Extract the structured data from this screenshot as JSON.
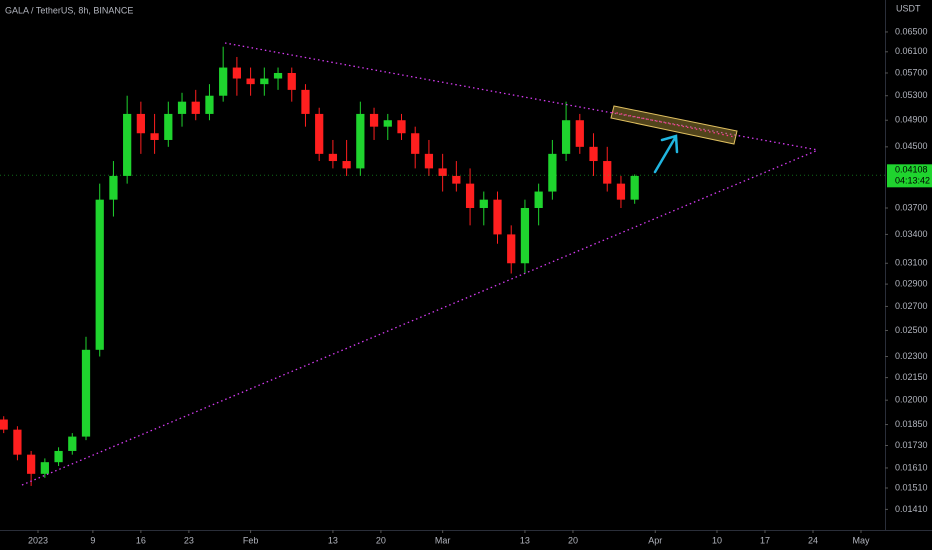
{
  "chart_data": {
    "type": "candlestick",
    "title": "GALA / TetherUS, 8h, BINANCE",
    "y_axis_unit": "USDT",
    "log_scale": true,
    "grid": false,
    "up_color": "#1fd42e",
    "down_color": "#ff1f1f",
    "xlim": [
      -5.54,
      123.5
    ],
    "ylim": [
      0.0132,
      0.072
    ],
    "xticks": [
      {
        "value": 0,
        "label": "2023"
      },
      {
        "value": 8,
        "label": "9"
      },
      {
        "value": 15,
        "label": "16"
      },
      {
        "value": 22,
        "label": "23"
      },
      {
        "value": 31,
        "label": "Feb"
      },
      {
        "value": 43,
        "label": "13"
      },
      {
        "value": 50,
        "label": "20"
      },
      {
        "value": 59,
        "label": "Mar"
      },
      {
        "value": 71,
        "label": "13"
      },
      {
        "value": 78,
        "label": "20"
      },
      {
        "value": 90,
        "label": "Apr"
      },
      {
        "value": 99,
        "label": "10"
      },
      {
        "value": 106,
        "label": "17"
      },
      {
        "value": 113,
        "label": "24"
      },
      {
        "value": 120,
        "label": "May"
      }
    ],
    "yticks": [
      {
        "value": 0.065,
        "label": "0.06500"
      },
      {
        "value": 0.061,
        "label": "0.06100"
      },
      {
        "value": 0.057,
        "label": "0.05700"
      },
      {
        "value": 0.053,
        "label": "0.05300"
      },
      {
        "value": 0.049,
        "label": "0.04900"
      },
      {
        "value": 0.045,
        "label": "0.04500"
      },
      {
        "value": 0.037,
        "label": "0.03700"
      },
      {
        "value": 0.034,
        "label": "0.03400"
      },
      {
        "value": 0.031,
        "label": "0.03100"
      },
      {
        "value": 0.029,
        "label": "0.02900"
      },
      {
        "value": 0.027,
        "label": "0.02700"
      },
      {
        "value": 0.025,
        "label": "0.02500"
      },
      {
        "value": 0.023,
        "label": "0.02300"
      },
      {
        "value": 0.0215,
        "label": "0.02150"
      },
      {
        "value": 0.02,
        "label": "0.02000"
      },
      {
        "value": 0.0185,
        "label": "0.01850"
      },
      {
        "value": 0.0173,
        "label": "0.01730"
      },
      {
        "value": 0.0161,
        "label": "0.01610"
      },
      {
        "value": 0.0151,
        "label": "0.01510"
      },
      {
        "value": 0.0141,
        "label": "0.01410"
      }
    ],
    "last_price": 0.04108,
    "countdown": "04:13:42",
    "x": [
      -5,
      -3,
      -1,
      1,
      3,
      5,
      7,
      9,
      11,
      13,
      15,
      17,
      19,
      21,
      23,
      25,
      27,
      29,
      31,
      33,
      35,
      37,
      39,
      41,
      43,
      45,
      47,
      49,
      51,
      53,
      55,
      57,
      59,
      61,
      63,
      65,
      67,
      69,
      71,
      73,
      75,
      77,
      79,
      81,
      83,
      85,
      87
    ],
    "open": [
      0.0188,
      0.0182,
      0.0168,
      0.0158,
      0.0164,
      0.017,
      0.0178,
      0.0235,
      0.038,
      0.041,
      0.05,
      0.047,
      0.046,
      0.05,
      0.052,
      0.05,
      0.053,
      0.058,
      0.056,
      0.055,
      0.056,
      0.057,
      0.054,
      0.05,
      0.044,
      0.043,
      0.042,
      0.05,
      0.048,
      0.049,
      0.047,
      0.044,
      0.042,
      0.041,
      0.04,
      0.037,
      0.038,
      0.034,
      0.031,
      0.037,
      0.039,
      0.044,
      0.049,
      0.045,
      0.043,
      0.04,
      0.038
    ],
    "high": [
      0.019,
      0.0184,
      0.017,
      0.0166,
      0.0172,
      0.018,
      0.0245,
      0.04,
      0.043,
      0.053,
      0.052,
      0.05,
      0.052,
      0.0535,
      0.054,
      0.055,
      0.062,
      0.06,
      0.058,
      0.058,
      0.058,
      0.058,
      0.055,
      0.051,
      0.046,
      0.046,
      0.052,
      0.051,
      0.05,
      0.05,
      0.048,
      0.046,
      0.044,
      0.043,
      0.042,
      0.039,
      0.039,
      0.035,
      0.038,
      0.04,
      0.046,
      0.052,
      0.05,
      0.047,
      0.045,
      0.041,
      0.0412
    ],
    "low": [
      0.018,
      0.0165,
      0.0152,
      0.0156,
      0.0162,
      0.0168,
      0.0176,
      0.023,
      0.036,
      0.04,
      0.044,
      0.044,
      0.045,
      0.048,
      0.049,
      0.049,
      0.052,
      0.053,
      0.053,
      0.053,
      0.054,
      0.052,
      0.048,
      0.043,
      0.042,
      0.041,
      0.041,
      0.046,
      0.046,
      0.046,
      0.042,
      0.041,
      0.039,
      0.039,
      0.035,
      0.035,
      0.033,
      0.03,
      0.03,
      0.035,
      0.038,
      0.043,
      0.044,
      0.041,
      0.039,
      0.037,
      0.0375
    ],
    "close": [
      0.0182,
      0.0168,
      0.0158,
      0.0164,
      0.017,
      0.0178,
      0.0235,
      0.038,
      0.041,
      0.05,
      0.047,
      0.046,
      0.05,
      0.052,
      0.05,
      0.053,
      0.058,
      0.056,
      0.055,
      0.056,
      0.057,
      0.054,
      0.05,
      0.044,
      0.043,
      0.042,
      0.05,
      0.048,
      0.049,
      0.047,
      0.044,
      0.042,
      0.041,
      0.04,
      0.037,
      0.038,
      0.034,
      0.031,
      0.037,
      0.039,
      0.044,
      0.049,
      0.045,
      0.043,
      0.04,
      0.038,
      0.041
    ]
  }
}
